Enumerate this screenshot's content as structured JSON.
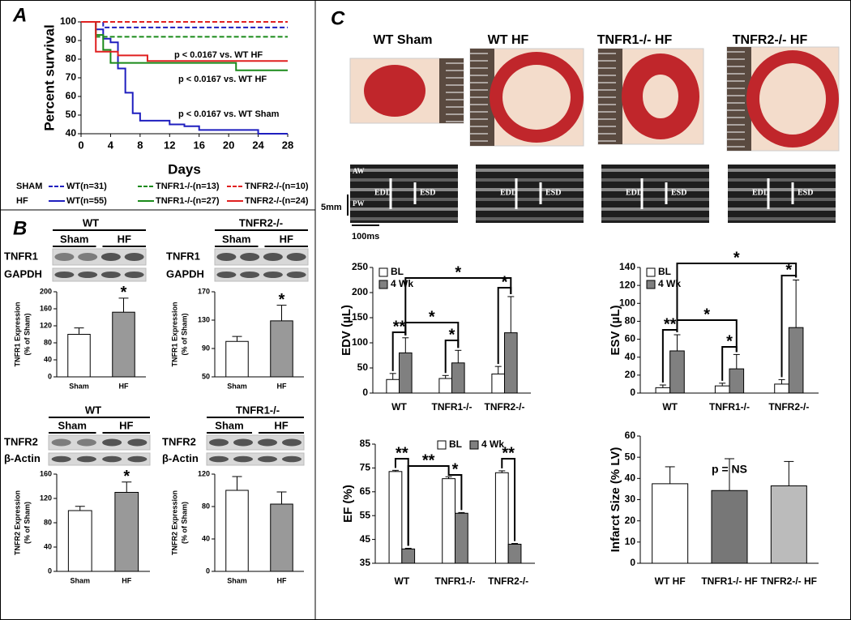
{
  "panel_labels": [
    "A",
    "B",
    "C"
  ],
  "chart_data": [
    {
      "type": "line",
      "ylabel": "Percent survival",
      "xlabel": "Days",
      "xlim": [
        0,
        28
      ],
      "xticks": [
        0,
        4,
        8,
        12,
        16,
        20,
        24,
        28
      ],
      "ylim": [
        40,
        100
      ],
      "yticks": [
        40,
        50,
        60,
        70,
        80,
        90,
        100
      ],
      "legend_groups": [
        "SHAM",
        "HF"
      ],
      "annotations": [
        "p < 0.0167 vs. WT HF",
        "p < 0.0167 vs. WT HF",
        "p < 0.0167 vs. WT Sham"
      ],
      "series": [
        {
          "name": "WT(n=31)",
          "color": "#1f1fbf",
          "dash": true,
          "x": [
            0,
            3,
            28
          ],
          "values": [
            100,
            97,
            97
          ]
        },
        {
          "name": "TNFR1-/-(n=13)",
          "color": "#1a8a1a",
          "dash": true,
          "x": [
            0,
            2,
            28
          ],
          "values": [
            100,
            92,
            92
          ]
        },
        {
          "name": "TNFR2-/-(n=10)",
          "color": "#e02020",
          "dash": true,
          "x": [
            0,
            28
          ],
          "values": [
            100,
            100
          ]
        },
        {
          "name": "WT(n=55)",
          "color": "#1f1fbf",
          "dash": false,
          "x": [
            0,
            2,
            3,
            4,
            5,
            6,
            7,
            8,
            12,
            14,
            16,
            24,
            28
          ],
          "values": [
            100,
            96,
            91,
            89,
            75,
            62,
            51,
            47,
            45,
            44,
            42,
            40,
            40
          ]
        },
        {
          "name": "TNFR1-/-(n=27)",
          "color": "#1a8a1a",
          "dash": false,
          "x": [
            0,
            2,
            3,
            4,
            21,
            28
          ],
          "values": [
            100,
            93,
            85,
            78,
            74,
            74
          ]
        },
        {
          "name": "TNFR2-/-(n=24)",
          "color": "#e02020",
          "dash": false,
          "x": [
            0,
            2,
            5,
            9,
            28
          ],
          "values": [
            100,
            84,
            82,
            79,
            79
          ]
        }
      ]
    },
    {
      "type": "bar",
      "ylabel": [
        "TNFR1 Expression",
        "(% of Sham)"
      ],
      "categories": [
        "Sham",
        "HF"
      ],
      "values": [
        100,
        152
      ],
      "errors": [
        15,
        33
      ],
      "colors": [
        "#ffffff",
        "#999999"
      ],
      "ylim": [
        0,
        200
      ],
      "yticks": [
        0,
        40,
        80,
        120,
        160,
        200
      ],
      "annotations": [
        "*"
      ]
    },
    {
      "type": "bar",
      "ylabel": [
        "TNFR1 Expression",
        "(% of Sham)"
      ],
      "categories": [
        "Sham",
        "HF"
      ],
      "values": [
        100,
        129
      ],
      "errors": [
        7,
        22
      ],
      "colors": [
        "#ffffff",
        "#999999"
      ],
      "ylim": [
        50,
        170
      ],
      "yticks": [
        50,
        90,
        130,
        170
      ],
      "annotations": [
        "*"
      ]
    },
    {
      "type": "bar",
      "ylabel": [
        "TNFR2 Expression",
        "(% of Sham)"
      ],
      "categories": [
        "Sham",
        "HF"
      ],
      "values": [
        100,
        130
      ],
      "errors": [
        7,
        17
      ],
      "colors": [
        "#ffffff",
        "#999999"
      ],
      "ylim": [
        0,
        160
      ],
      "yticks": [
        0,
        40,
        80,
        120,
        160
      ],
      "annotations": [
        "*"
      ]
    },
    {
      "type": "bar",
      "ylabel": [
        "TNFR2 Expression",
        "(% of Sham)"
      ],
      "categories": [
        "Sham",
        "HF"
      ],
      "values": [
        100,
        83
      ],
      "errors": [
        17,
        15
      ],
      "colors": [
        "#ffffff",
        "#999999"
      ],
      "ylim": [
        0,
        120
      ],
      "yticks": [
        0,
        40,
        80,
        120
      ]
    },
    {
      "type": "grouped_bar",
      "ylabel": "EDV (µL)",
      "categories": [
        "WT",
        "TNFR1-/-",
        "TNFR2-/-"
      ],
      "series": [
        {
          "name": "BL",
          "color": "#ffffff",
          "values": [
            27,
            29,
            38
          ],
          "errors": [
            12,
            6,
            15
          ]
        },
        {
          "name": "4 Wk",
          "color": "#808080",
          "values": [
            80,
            60,
            120
          ],
          "errors": [
            30,
            25,
            72
          ]
        }
      ],
      "ylim": [
        0,
        250
      ],
      "yticks": [
        0,
        50,
        100,
        150,
        200,
        250
      ],
      "legend": "upper left",
      "annotations": [
        "*",
        "*",
        "*",
        "*",
        "**"
      ]
    },
    {
      "type": "grouped_bar",
      "ylabel": "ESV (µL)",
      "categories": [
        "WT",
        "TNFR1-/-",
        "TNFR2-/-"
      ],
      "series": [
        {
          "name": "BL",
          "color": "#ffffff",
          "values": [
            6,
            8,
            10
          ],
          "errors": [
            3,
            3,
            5
          ]
        },
        {
          "name": "4 Wk",
          "color": "#808080",
          "values": [
            47,
            27,
            73
          ],
          "errors": [
            18,
            16,
            53
          ]
        }
      ],
      "ylim": [
        0,
        140
      ],
      "yticks": [
        0,
        20,
        40,
        60,
        80,
        100,
        120,
        140
      ],
      "legend": "upper left",
      "annotations": [
        "*",
        "*",
        "*",
        "*",
        "**"
      ]
    },
    {
      "type": "grouped_bar",
      "ylabel": "EF (%)",
      "categories": [
        "WT",
        "TNFR1-/-",
        "TNFR2-/-"
      ],
      "series": [
        {
          "name": "BL",
          "color": "#ffffff",
          "values": [
            73.5,
            70.5,
            73
          ],
          "errors": [
            0.5,
            0.8,
            0.8
          ]
        },
        {
          "name": "4 Wk",
          "color": "#808080",
          "values": [
            41,
            56,
            43
          ],
          "errors": [
            0.3,
            0.3,
            0.3
          ]
        }
      ],
      "ylim": [
        35,
        85
      ],
      "yticks": [
        35,
        45,
        55,
        65,
        75,
        85
      ],
      "legend": "upper center",
      "annotations": [
        "**",
        "**",
        "*",
        "**"
      ]
    },
    {
      "type": "bar",
      "ylabel": "Infarct Size (% LV)",
      "categories": [
        "WT HF",
        "TNFR1-/- HF",
        "TNFR2-/- HF"
      ],
      "values": [
        37.5,
        34.3,
        36.5
      ],
      "errors": [
        8,
        15,
        11.5
      ],
      "colors": [
        "#ffffff",
        "#777777",
        "#bbbbbb"
      ],
      "ylim": [
        0,
        60
      ],
      "yticks": [
        0,
        10,
        20,
        30,
        40,
        50,
        60
      ],
      "annotations": [
        "p = NS"
      ]
    }
  ],
  "blots": [
    {
      "title": "WT",
      "groups": [
        "Sham",
        "HF"
      ],
      "rows": [
        "TNFR1",
        "GAPDH"
      ]
    },
    {
      "title": "TNFR2-/-",
      "groups": [
        "Sham",
        "HF"
      ],
      "rows": [
        "TNFR1",
        "GAPDH"
      ]
    },
    {
      "title": "WT",
      "groups": [
        "Sham",
        "HF"
      ],
      "rows": [
        "TNFR2",
        "β-Actin"
      ]
    },
    {
      "title": "TNFR1-/-",
      "groups": [
        "Sham",
        "HF"
      ],
      "rows": [
        "TNFR2",
        "β-Actin"
      ]
    }
  ],
  "photos": {
    "titles": [
      "WT Sham",
      "WT HF",
      "TNFR1-/- HF",
      "TNFR2-/- HF"
    ]
  },
  "echo": {
    "wall_labels": [
      "AW",
      "PW"
    ],
    "dimension_labels": [
      "EDD",
      "ESD"
    ],
    "scale_bars": [
      "5mm",
      "100ms"
    ]
  }
}
